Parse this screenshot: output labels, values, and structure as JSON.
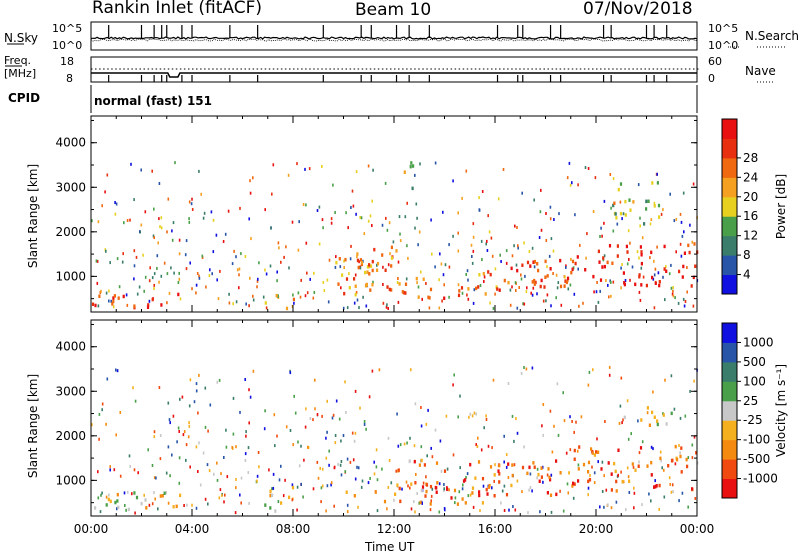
{
  "header": {
    "station": "Rankin Inlet (fitACF)",
    "beam": "Beam 10",
    "date": "07/Nov/2018"
  },
  "noise_panel": {
    "left_label": "N.Sky",
    "right_label": "N.Search",
    "left_ticks": [
      "10^5",
      "10^0"
    ],
    "right_ticks": [
      "10^5",
      "10^0"
    ]
  },
  "freq_panel": {
    "left_label_1": "Freq.",
    "left_label_2": "[MHz]",
    "right_label": "Nave",
    "left_ticks": [
      "18",
      "8"
    ],
    "right_ticks": [
      "60",
      "0"
    ]
  },
  "cpid_panel": {
    "label": "CPID",
    "mode": "normal (fast) 151"
  },
  "colors": {
    "power_scale": [
      "#1010e0",
      "#2855a8",
      "#3a7d6a",
      "#4aa04a",
      "#e8d020",
      "#f5a020",
      "#f06810",
      "#e83010",
      "#e81010"
    ],
    "velocity_scale": [
      "#e81010",
      "#f04a10",
      "#f58a10",
      "#f5b020",
      "#c8c8c8",
      "#4aa04a",
      "#3a7d6a",
      "#2855a8",
      "#1010e0"
    ]
  },
  "chart_data": [
    {
      "type": "heatmap",
      "name": "power",
      "ylabel": "Slant Range [km]",
      "xlabel": "",
      "ylim": [
        200,
        4600
      ],
      "xlim": [
        0,
        24
      ],
      "x_ticks": [
        "00:00",
        "04:00",
        "08:00",
        "12:00",
        "16:00",
        "20:00",
        "00:00"
      ],
      "y_ticks": [
        1000,
        2000,
        3000,
        4000
      ],
      "colorbar": {
        "label": "Power [dB]",
        "ticks": [
          "4",
          "8",
          "12",
          "16",
          "20",
          "24",
          "28"
        ],
        "range": [
          0,
          30
        ]
      },
      "blobs": [
        {
          "t0": 0.0,
          "t1": 3.6,
          "r0": 300,
          "r1": 700,
          "level": 0.85
        },
        {
          "t0": 6.8,
          "t1": 8.2,
          "r0": 300,
          "r1": 650,
          "level": 0.6
        },
        {
          "t0": 9.5,
          "t1": 12.0,
          "r0": 600,
          "r1": 1500,
          "level": 0.7
        },
        {
          "t0": 10.5,
          "t1": 12.5,
          "r0": 800,
          "r1": 1700,
          "level": 0.65
        },
        {
          "t0": 12.0,
          "t1": 14.0,
          "r0": 500,
          "r1": 1000,
          "level": 0.8
        },
        {
          "t0": 14.5,
          "t1": 16.5,
          "r0": 600,
          "r1": 1200,
          "level": 0.7
        },
        {
          "t0": 16.0,
          "t1": 20.0,
          "r0": 700,
          "r1": 1500,
          "level": 0.85
        },
        {
          "t0": 20.0,
          "t1": 24.0,
          "r0": 800,
          "r1": 1800,
          "level": 0.9
        },
        {
          "t0": 12.3,
          "t1": 13.0,
          "r0": 3000,
          "r1": 3600,
          "level": 0.45
        },
        {
          "t0": 20.5,
          "t1": 22.5,
          "r0": 2200,
          "r1": 3200,
          "level": 0.5
        }
      ]
    },
    {
      "type": "heatmap",
      "name": "velocity",
      "ylabel": "Slant Range [km]",
      "xlabel": "Time UT",
      "ylim": [
        200,
        4600
      ],
      "xlim": [
        0,
        24
      ],
      "x_ticks": [
        "00:00",
        "04:00",
        "08:00",
        "12:00",
        "16:00",
        "20:00",
        "00:00"
      ],
      "y_ticks": [
        1000,
        2000,
        3000,
        4000
      ],
      "colorbar": {
        "label": "Velocity [m s^-1]",
        "ticks": [
          "1000",
          "500",
          "100",
          "25",
          "-25",
          "-100",
          "-500",
          "-1000"
        ],
        "range": [
          -1000,
          1000
        ]
      },
      "blobs": [
        {
          "t0": 0.0,
          "t1": 3.6,
          "r0": 300,
          "r1": 800,
          "level": 0.45
        },
        {
          "t0": 6.8,
          "t1": 8.2,
          "r0": 300,
          "r1": 900,
          "level": 0.5
        },
        {
          "t0": 10.0,
          "t1": 16.0,
          "r0": 500,
          "r1": 900,
          "level": 0.2
        },
        {
          "t0": 12.0,
          "t1": 14.0,
          "r0": 800,
          "r1": 1500,
          "level": 0.3
        },
        {
          "t0": 14.5,
          "t1": 19.0,
          "r0": 700,
          "r1": 1500,
          "level": 0.2
        },
        {
          "t0": 19.0,
          "t1": 24.0,
          "r0": 800,
          "r1": 1800,
          "level": 0.2
        },
        {
          "t0": 21.0,
          "t1": 23.0,
          "r0": 2200,
          "r1": 2700,
          "level": 0.5
        }
      ]
    }
  ]
}
